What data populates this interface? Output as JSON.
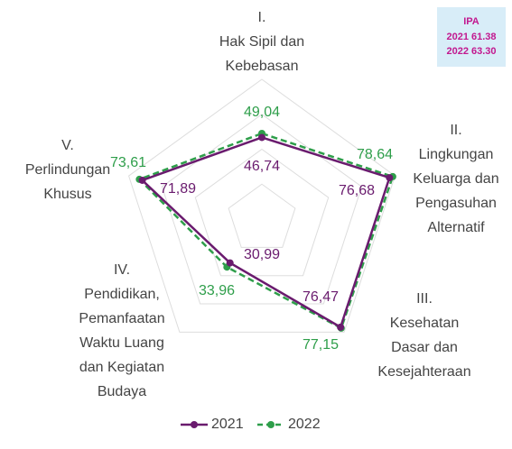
{
  "chart_data": {
    "type": "radar",
    "categories": [
      [
        "I.",
        "Hak Sipil dan",
        "Kebebasan"
      ],
      [
        "II.",
        "Lingkungan",
        "Keluarga dan",
        "Pengasuhan",
        "Alternatif"
      ],
      [
        "III.",
        "Kesehatan",
        "Dasar dan",
        "Kesejahteraan"
      ],
      [
        "IV.",
        "Pendidikan,",
        "Pemanfaatan",
        "Waktu Luang",
        "dan Kegiatan",
        "Budaya"
      ],
      [
        "V.",
        "Perlindungan",
        "Khusus"
      ]
    ],
    "series": [
      {
        "name": "2021",
        "color": "#6a1b6e",
        "dashed": false,
        "values": [
          46.74,
          76.68,
          76.47,
          30.99,
          71.89
        ],
        "value_labels": [
          "46,74",
          "76,68",
          "76,47",
          "30,99",
          "71,89"
        ]
      },
      {
        "name": "2022",
        "color": "#2e9e4a",
        "dashed": true,
        "values": [
          49.04,
          78.64,
          77.15,
          33.96,
          73.61
        ],
        "value_labels": [
          "49,04",
          "78,64",
          "77,15",
          "33,96",
          "73,61"
        ]
      }
    ],
    "ylim": [
      0,
      80
    ],
    "yticks": [
      0,
      20,
      40,
      60,
      80
    ],
    "grid": true,
    "annotation": {
      "title": "IPA",
      "lines": [
        "2021 61.38",
        "2022 63.30"
      ]
    }
  }
}
